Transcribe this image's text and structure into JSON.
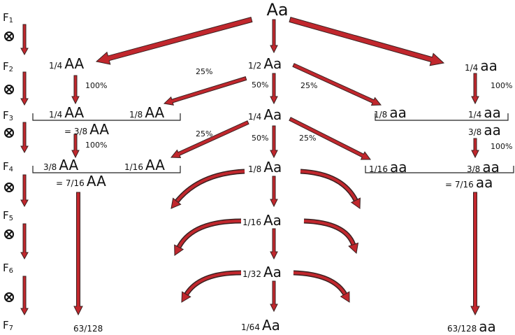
{
  "top": "Aa",
  "generations": [
    {
      "base": "F",
      "sub": "1"
    },
    {
      "base": "F",
      "sub": "2"
    },
    {
      "base": "F",
      "sub": "3"
    },
    {
      "base": "F",
      "sub": "4"
    },
    {
      "base": "F",
      "sub": "5"
    },
    {
      "base": "F",
      "sub": "6"
    },
    {
      "base": "F",
      "sub": "7"
    }
  ],
  "labels": [
    {
      "frac": "1/4",
      "geno": "AA"
    },
    {
      "frac": "1/2",
      "geno": "Aa"
    },
    {
      "frac": "1/4",
      "geno": "aa"
    },
    {
      "frac": "1/4",
      "geno": "AA"
    },
    {
      "frac": "1/8",
      "geno": "AA"
    },
    {
      "frac": "= 3/8",
      "geno": "AA"
    },
    {
      "frac": "1/4",
      "geno": "Aa"
    },
    {
      "frac": "1/8",
      "geno": "aa"
    },
    {
      "frac": "1/4",
      "geno": "aa"
    },
    {
      "frac": "3/8",
      "geno": "aa"
    },
    {
      "frac": "3/8",
      "geno": "AA"
    },
    {
      "frac": "1/16",
      "geno": "AA"
    },
    {
      "frac": "= 7/16",
      "geno": "AA"
    },
    {
      "frac": "1/8",
      "geno": "Aa"
    },
    {
      "frac": "1/16",
      "geno": "aa"
    },
    {
      "frac": "3/8",
      "geno": "aa"
    },
    {
      "frac": "= 7/16",
      "geno": "aa"
    },
    {
      "frac": "1/16",
      "geno": "Aa"
    },
    {
      "frac": "1/32",
      "geno": "Aa"
    },
    {
      "frac": "1/64",
      "geno": "Aa"
    },
    {
      "frac": "63/128"
    },
    {
      "frac": "63/128",
      "geno": "aa"
    }
  ],
  "percents": [
    "100%",
    "25%",
    "50%",
    "25%",
    "100%",
    "100%",
    "25%",
    "50%",
    "25%",
    "100%"
  ]
}
